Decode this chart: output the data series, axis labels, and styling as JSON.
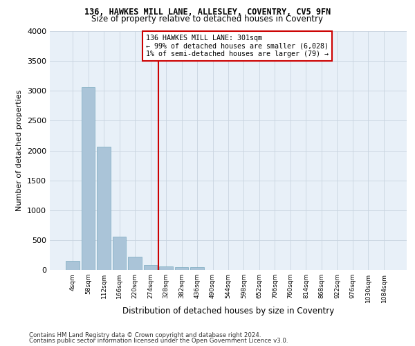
{
  "title1": "136, HAWKES MILL LANE, ALLESLEY, COVENTRY, CV5 9FN",
  "title2": "Size of property relative to detached houses in Coventry",
  "xlabel": "Distribution of detached houses by size in Coventry",
  "ylabel": "Number of detached properties",
  "bar_labels": [
    "4sqm",
    "58sqm",
    "112sqm",
    "166sqm",
    "220sqm",
    "274sqm",
    "328sqm",
    "382sqm",
    "436sqm",
    "490sqm",
    "544sqm",
    "598sqm",
    "652sqm",
    "706sqm",
    "760sqm",
    "814sqm",
    "868sqm",
    "922sqm",
    "976sqm",
    "1030sqm",
    "1084sqm"
  ],
  "bar_values": [
    150,
    3060,
    2060,
    560,
    215,
    85,
    60,
    50,
    50,
    0,
    0,
    0,
    0,
    0,
    0,
    0,
    0,
    0,
    0,
    0,
    0
  ],
  "bar_color": "#aac4d8",
  "bar_edgecolor": "#7aaac0",
  "annotation_text": "136 HAWKES MILL LANE: 301sqm\n← 99% of detached houses are smaller (6,028)\n1% of semi-detached houses are larger (79) →",
  "vline_color": "#cc0000",
  "box_edgecolor": "#cc0000",
  "ylim": [
    0,
    4000
  ],
  "yticks": [
    0,
    500,
    1000,
    1500,
    2000,
    2500,
    3000,
    3500,
    4000
  ],
  "background_color": "#e8f0f8",
  "grid_color": "#c8d4e0",
  "footer1": "Contains HM Land Registry data © Crown copyright and database right 2024.",
  "footer2": "Contains public sector information licensed under the Open Government Licence v3.0."
}
